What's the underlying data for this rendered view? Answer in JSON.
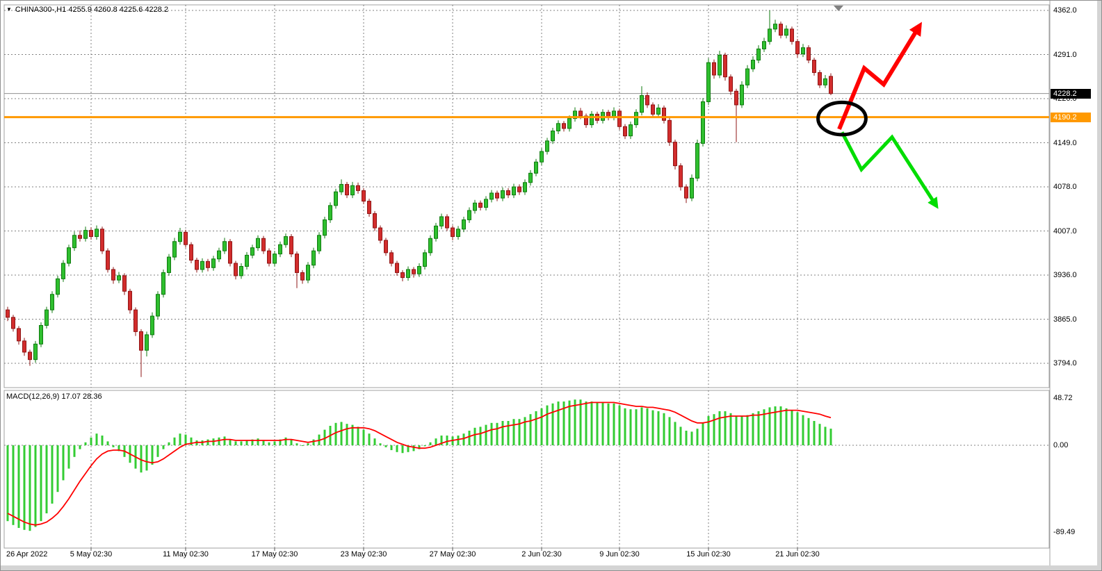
{
  "header": {
    "symbol": "CHINA300-",
    "timeframe": "H1",
    "open": "4255.9",
    "high": "4260.8",
    "low": "4225.6",
    "close": "4228.2",
    "display": "CHINA300-,H1  4255.9 4260.8 4225.6 4228.2"
  },
  "price_axis": {
    "gridline_labels": [
      "4362.0",
      "4291.0",
      "4220.0",
      "4149.0",
      "4078.0",
      "4007.0",
      "3936.0",
      "3865.0",
      "3794.0"
    ],
    "gridline_values": [
      4362,
      4291,
      4220,
      4149,
      4078,
      4007,
      3936,
      3865,
      3794
    ],
    "current_price_label": "4228.2",
    "current_price_value": 4228.2,
    "hline_label": "4190.2",
    "hline_value": 4190.2
  },
  "macd_pane": {
    "indicator_label": "MACD(12,26,9)",
    "indicator_values": "17.07 28.36",
    "display": "MACD(12,26,9) 17.07 28.36",
    "axis_labels": [
      "48.72",
      "0.00",
      "-89.49"
    ],
    "axis_values": [
      48.72,
      0,
      -89.49
    ]
  },
  "time_axis": {
    "labels": [
      {
        "text": "26 Apr 2022",
        "index": 0
      },
      {
        "text": "5 May 02:30",
        "index": 15
      },
      {
        "text": "11 May 02:30",
        "index": 32
      },
      {
        "text": "17 May 02:30",
        "index": 48
      },
      {
        "text": "23 May 02:30",
        "index": 64
      },
      {
        "text": "27 May 02:30",
        "index": 80
      },
      {
        "text": "2 Jun 02:30",
        "index": 96
      },
      {
        "text": "9 Jun 02:30",
        "index": 110
      },
      {
        "text": "15 Jun 02:30",
        "index": 126
      },
      {
        "text": "21 Jun 02:30",
        "index": 142
      }
    ]
  },
  "chart_data": {
    "type": "candlestick",
    "title": "CHINA300-,H1",
    "price_axis_range": [
      3794,
      4362
    ],
    "macd_axis_range": [
      -89.49,
      48.72
    ],
    "grid": true,
    "candles": [
      [
        3880,
        3885,
        3862,
        3868
      ],
      [
        3868,
        3872,
        3845,
        3850
      ],
      [
        3850,
        3854,
        3824,
        3830
      ],
      [
        3830,
        3835,
        3806,
        3812
      ],
      [
        3812,
        3816,
        3790,
        3800
      ],
      [
        3800,
        3830,
        3795,
        3825
      ],
      [
        3825,
        3860,
        3820,
        3855
      ],
      [
        3855,
        3885,
        3850,
        3880
      ],
      [
        3880,
        3910,
        3875,
        3905
      ],
      [
        3905,
        3935,
        3900,
        3930
      ],
      [
        3930,
        3960,
        3925,
        3955
      ],
      [
        3955,
        3985,
        3950,
        3980
      ],
      [
        3980,
        4006,
        3975,
        4000
      ],
      [
        4000,
        4008,
        3990,
        3995
      ],
      [
        3995,
        4014,
        3990,
        4008
      ],
      [
        4008,
        4013,
        3993,
        3998
      ],
      [
        3998,
        4016,
        3993,
        4010
      ],
      [
        4010,
        4014,
        3970,
        3975
      ],
      [
        3975,
        3979,
        3940,
        3945
      ],
      [
        3945,
        3949,
        3922,
        3928
      ],
      [
        3928,
        3941,
        3923,
        3935
      ],
      [
        3935,
        3939,
        3904,
        3910
      ],
      [
        3910,
        3914,
        3874,
        3880
      ],
      [
        3880,
        3884,
        3838,
        3845
      ],
      [
        3845,
        3849,
        3772,
        3815
      ],
      [
        3815,
        3845,
        3805,
        3840
      ],
      [
        3840,
        3876,
        3835,
        3870
      ],
      [
        3870,
        3910,
        3865,
        3905
      ],
      [
        3905,
        3945,
        3900,
        3940
      ],
      [
        3940,
        3970,
        3935,
        3965
      ],
      [
        3965,
        3996,
        3960,
        3990
      ],
      [
        3990,
        4012,
        3985,
        4005
      ],
      [
        4005,
        4009,
        3980,
        3985
      ],
      [
        3985,
        3989,
        3955,
        3960
      ],
      [
        3960,
        3964,
        3940,
        3945
      ],
      [
        3945,
        3963,
        3940,
        3958
      ],
      [
        3958,
        3962,
        3942,
        3948
      ],
      [
        3948,
        3967,
        3943,
        3962
      ],
      [
        3962,
        3980,
        3957,
        3975
      ],
      [
        3975,
        3996,
        3970,
        3990
      ],
      [
        3990,
        3994,
        3950,
        3955
      ],
      [
        3955,
        3959,
        3929,
        3935
      ],
      [
        3935,
        3955,
        3930,
        3950
      ],
      [
        3950,
        3973,
        3945,
        3968
      ],
      [
        3968,
        3985,
        3963,
        3980
      ],
      [
        3980,
        4000,
        3975,
        3995
      ],
      [
        3995,
        3999,
        3970,
        3975
      ],
      [
        3975,
        3979,
        3950,
        3955
      ],
      [
        3955,
        3975,
        3950,
        3970
      ],
      [
        3970,
        3990,
        3965,
        3985
      ],
      [
        3985,
        4003,
        3980,
        3998
      ],
      [
        3998,
        4002,
        3965,
        3970
      ],
      [
        3970,
        3974,
        3915,
        3940
      ],
      [
        3940,
        3944,
        3922,
        3928
      ],
      [
        3928,
        3957,
        3923,
        3952
      ],
      [
        3952,
        3980,
        3947,
        3975
      ],
      [
        3975,
        4005,
        3970,
        4000
      ],
      [
        4000,
        4030,
        3995,
        4025
      ],
      [
        4025,
        4053,
        4020,
        4048
      ],
      [
        4048,
        4075,
        4043,
        4070
      ],
      [
        4070,
        4090,
        4065,
        4082
      ],
      [
        4082,
        4086,
        4060,
        4065
      ],
      [
        4065,
        4086,
        4060,
        4080
      ],
      [
        4080,
        4085,
        4067,
        4072
      ],
      [
        4072,
        4076,
        4050,
        4055
      ],
      [
        4055,
        4059,
        4030,
        4035
      ],
      [
        4035,
        4039,
        4007,
        4012
      ],
      [
        4012,
        4016,
        3987,
        3992
      ],
      [
        3992,
        3996,
        3967,
        3972
      ],
      [
        3972,
        3976,
        3950,
        3955
      ],
      [
        3955,
        3959,
        3935,
        3940
      ],
      [
        3940,
        3944,
        3926,
        3932
      ],
      [
        3932,
        3950,
        3927,
        3945
      ],
      [
        3945,
        3949,
        3932,
        3938
      ],
      [
        3938,
        3955,
        3933,
        3950
      ],
      [
        3950,
        3977,
        3945,
        3972
      ],
      [
        3972,
        4000,
        3967,
        3995
      ],
      [
        3995,
        4020,
        3990,
        4015
      ],
      [
        4015,
        4035,
        4010,
        4030
      ],
      [
        4030,
        4034,
        4007,
        4012
      ],
      [
        4012,
        4016,
        3992,
        3998
      ],
      [
        3998,
        4015,
        3993,
        4010
      ],
      [
        4010,
        4030,
        4005,
        4025
      ],
      [
        4025,
        4045,
        4020,
        4040
      ],
      [
        4040,
        4057,
        4035,
        4052
      ],
      [
        4052,
        4056,
        4040,
        4045
      ],
      [
        4045,
        4063,
        4040,
        4058
      ],
      [
        4058,
        4073,
        4053,
        4068
      ],
      [
        4068,
        4072,
        4055,
        4060
      ],
      [
        4060,
        4077,
        4055,
        4072
      ],
      [
        4072,
        4076,
        4060,
        4065
      ],
      [
        4065,
        4083,
        4060,
        4078
      ],
      [
        4078,
        4082,
        4065,
        4070
      ],
      [
        4070,
        4090,
        4065,
        4085
      ],
      [
        4085,
        4105,
        4080,
        4100
      ],
      [
        4100,
        4123,
        4095,
        4118
      ],
      [
        4118,
        4140,
        4113,
        4135
      ],
      [
        4135,
        4157,
        4130,
        4152
      ],
      [
        4152,
        4173,
        4147,
        4168
      ],
      [
        4168,
        4185,
        4163,
        4180
      ],
      [
        4180,
        4184,
        4167,
        4172
      ],
      [
        4172,
        4193,
        4167,
        4188
      ],
      [
        4188,
        4206,
        4183,
        4200
      ],
      [
        4200,
        4205,
        4187,
        4192
      ],
      [
        4192,
        4196,
        4173,
        4178
      ],
      [
        4178,
        4200,
        4173,
        4195
      ],
      [
        4195,
        4199,
        4180,
        4185
      ],
      [
        4185,
        4203,
        4180,
        4198
      ],
      [
        4198,
        4202,
        4185,
        4190
      ],
      [
        4190,
        4206,
        4185,
        4200
      ],
      [
        4200,
        4204,
        4170,
        4175
      ],
      [
        4175,
        4179,
        4155,
        4160
      ],
      [
        4160,
        4183,
        4155,
        4178
      ],
      [
        4178,
        4203,
        4173,
        4198
      ],
      [
        4198,
        4240,
        4193,
        4225
      ],
      [
        4225,
        4230,
        4205,
        4210
      ],
      [
        4210,
        4214,
        4190,
        4195
      ],
      [
        4195,
        4211,
        4190,
        4205
      ],
      [
        4205,
        4209,
        4180,
        4185
      ],
      [
        4185,
        4189,
        4144,
        4150
      ],
      [
        4150,
        4154,
        4106,
        4112
      ],
      [
        4112,
        4116,
        4072,
        4078
      ],
      [
        4078,
        4082,
        4052,
        4060
      ],
      [
        4060,
        4098,
        4055,
        4092
      ],
      [
        4092,
        4154,
        4087,
        4148
      ],
      [
        4148,
        4221,
        4143,
        4215
      ],
      [
        4215,
        4285,
        4210,
        4278
      ],
      [
        4278,
        4283,
        4252,
        4258
      ],
      [
        4258,
        4297,
        4253,
        4290
      ],
      [
        4290,
        4294,
        4249,
        4255
      ],
      [
        4255,
        4259,
        4226,
        4232
      ],
      [
        4232,
        4236,
        4150,
        4210
      ],
      [
        4210,
        4248,
        4205,
        4242
      ],
      [
        4242,
        4274,
        4237,
        4268
      ],
      [
        4268,
        4288,
        4263,
        4282
      ],
      [
        4282,
        4306,
        4277,
        4300
      ],
      [
        4300,
        4318,
        4295,
        4312
      ],
      [
        4312,
        4362,
        4307,
        4332
      ],
      [
        4332,
        4347,
        4327,
        4340
      ],
      [
        4340,
        4344,
        4317,
        4322
      ],
      [
        4322,
        4338,
        4317,
        4332
      ],
      [
        4332,
        4336,
        4307,
        4312
      ],
      [
        4312,
        4316,
        4286,
        4292
      ],
      [
        4292,
        4308,
        4287,
        4302
      ],
      [
        4302,
        4306,
        4277,
        4282
      ],
      [
        4282,
        4286,
        4257,
        4262
      ],
      [
        4262,
        4266,
        4237,
        4242
      ],
      [
        4242,
        4258,
        4237,
        4252
      ],
      [
        4255.9,
        4260.8,
        4225.6,
        4228.2
      ]
    ],
    "macd_histogram": [
      -78,
      -82,
      -85,
      -87,
      -88,
      -84,
      -78,
      -70,
      -60,
      -48,
      -36,
      -24,
      -12,
      -4,
      3,
      8,
      12,
      10,
      4,
      -2,
      -6,
      -12,
      -18,
      -24,
      -28,
      -26,
      -20,
      -12,
      -4,
      3,
      8,
      12,
      11,
      8,
      5,
      5,
      6,
      7,
      8,
      9,
      6,
      4,
      4,
      5,
      6,
      7,
      5,
      3,
      4,
      6,
      8,
      6,
      2,
      0,
      2,
      6,
      11,
      16,
      20,
      23,
      24,
      22,
      21,
      19,
      16,
      12,
      7,
      2,
      -2,
      -5,
      -7,
      -8,
      -7,
      -6,
      -4,
      -1,
      3,
      7,
      10,
      10,
      9,
      10,
      12,
      15,
      18,
      19,
      21,
      23,
      23,
      25,
      25,
      27,
      27,
      29,
      32,
      35,
      38,
      41,
      43,
      45,
      45,
      46,
      47,
      47,
      45,
      45,
      44,
      44,
      43,
      43,
      41,
      38,
      37,
      37,
      39,
      38,
      36,
      35,
      33,
      29,
      24,
      19,
      15,
      14,
      17,
      23,
      30,
      32,
      35,
      35,
      33,
      30,
      30,
      31,
      33,
      35,
      37,
      39,
      40,
      40,
      38,
      36,
      34,
      31,
      28,
      25,
      22,
      19,
      17.07
    ],
    "macd_signal": [
      -70,
      -73,
      -76,
      -79,
      -81,
      -82,
      -81,
      -79,
      -75,
      -70,
      -63,
      -55,
      -46,
      -37,
      -29,
      -21,
      -14,
      -9,
      -6,
      -5,
      -5,
      -6,
      -9,
      -12,
      -15,
      -17,
      -18,
      -17,
      -14,
      -10,
      -6,
      -2,
      1,
      2,
      3,
      3,
      4,
      4,
      5,
      6,
      6,
      5,
      5,
      5,
      5,
      5,
      5,
      5,
      5,
      5,
      6,
      6,
      5,
      4,
      3,
      4,
      5,
      7,
      10,
      13,
      15,
      17,
      18,
      18,
      18,
      17,
      15,
      12,
      9,
      6,
      3,
      1,
      -1,
      -2,
      -3,
      -3,
      -2,
      0,
      2,
      4,
      5,
      6,
      7,
      9,
      11,
      12,
      14,
      16,
      17,
      19,
      20,
      21,
      22,
      24,
      25,
      27,
      29,
      32,
      34,
      36,
      38,
      40,
      41,
      42,
      43,
      44,
      44,
      44,
      44,
      44,
      43,
      42,
      41,
      40,
      40,
      39,
      39,
      38,
      37,
      36,
      34,
      31,
      28,
      25,
      23,
      23,
      24,
      26,
      28,
      29,
      30,
      30,
      30,
      30,
      31,
      31,
      32,
      33,
      34,
      35,
      36,
      36,
      36,
      35,
      34,
      33,
      32,
      30,
      28.36
    ],
    "annotations": {
      "support_line_price": 4190.2,
      "ellipse": {
        "index": 150,
        "price": 4188,
        "rx_bars": 4.3,
        "ry_points": 26
      },
      "up_arrow": [
        [
          149.5,
          4171
        ],
        [
          154,
          4269
        ],
        [
          157.5,
          4243
        ],
        [
          164,
          4338
        ]
      ],
      "down_arrow": [
        [
          150,
          4166
        ],
        [
          153.5,
          4106
        ],
        [
          159,
          4158
        ],
        [
          167,
          4047
        ]
      ]
    }
  },
  "colors": {
    "bull": "#2fbf2f",
    "bull_edge": "#0e7a0e",
    "bear": "#d22d2d",
    "bear_edge": "#8f1414",
    "histogram": "#33cc33",
    "signal": "#ff0000",
    "hline": "#ff9900",
    "grid": "#808080",
    "current_price_line": "#909090",
    "up_arrow": "#ff0000",
    "down_arrow": "#00dd00",
    "ellipse": "#000000"
  }
}
